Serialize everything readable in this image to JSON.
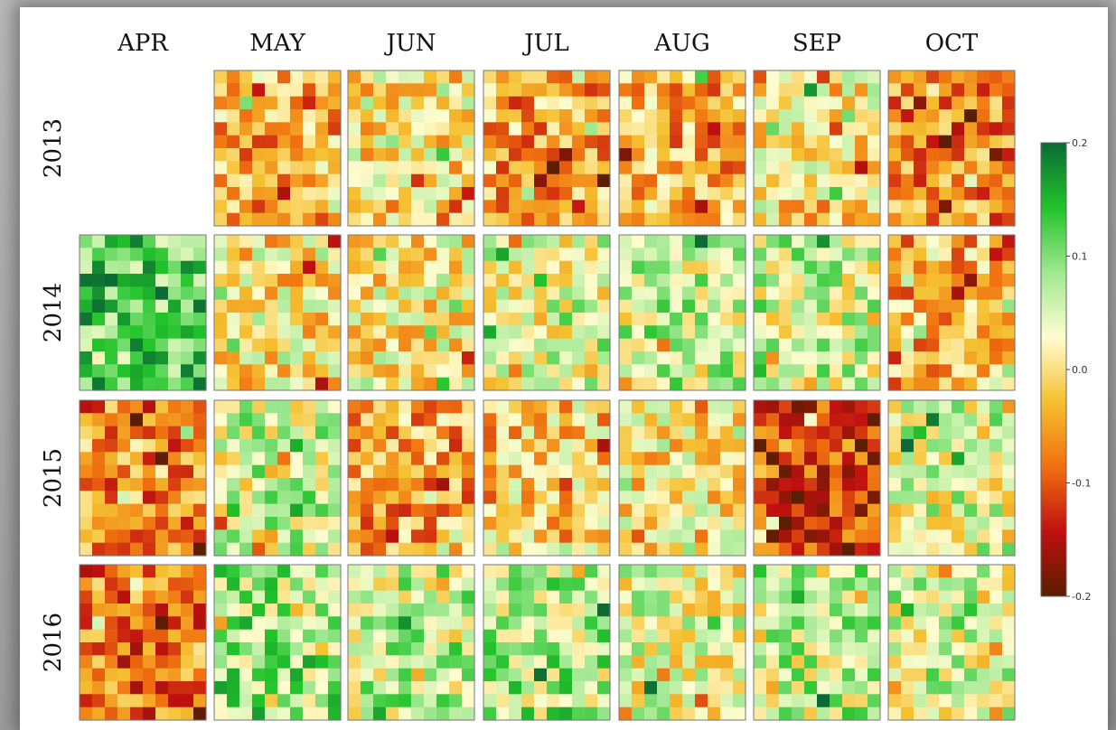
{
  "chart_data": {
    "type": "heatmap",
    "title": "",
    "months": [
      "APR",
      "MAY",
      "JUN",
      "JUL",
      "AUG",
      "SEP",
      "OCT"
    ],
    "years": [
      "2013",
      "2014",
      "2015",
      "2016"
    ],
    "missing_panels": [
      {
        "year": "2013",
        "month": "APR"
      }
    ],
    "colorbar": {
      "min": -0.2,
      "max": 0.2,
      "ticks": [
        0.2,
        0.1,
        0.0,
        -0.1,
        -0.2
      ],
      "tick_labels": [
        "0.2",
        "0.1",
        "0.0",
        "-0.1",
        "-0.2"
      ],
      "colors": [
        "#5a1e00",
        "#c01010",
        "#f07010",
        "#f5c030",
        "#fffdd0",
        "#9fe890",
        "#22c32a",
        "#0b6a35"
      ]
    },
    "panel_mean_values": {
      "2013": [
        null,
        -0.04,
        0.0,
        -0.05,
        -0.04,
        0.0,
        -0.06
      ],
      "2014": [
        0.12,
        0.0,
        0.01,
        0.03,
        0.06,
        0.05,
        -0.04
      ],
      "2015": [
        -0.06,
        0.05,
        -0.05,
        -0.02,
        0.0,
        -0.12,
        0.04
      ],
      "2016": [
        -0.08,
        0.08,
        0.06,
        0.07,
        0.03,
        0.06,
        0.05
      ]
    }
  }
}
